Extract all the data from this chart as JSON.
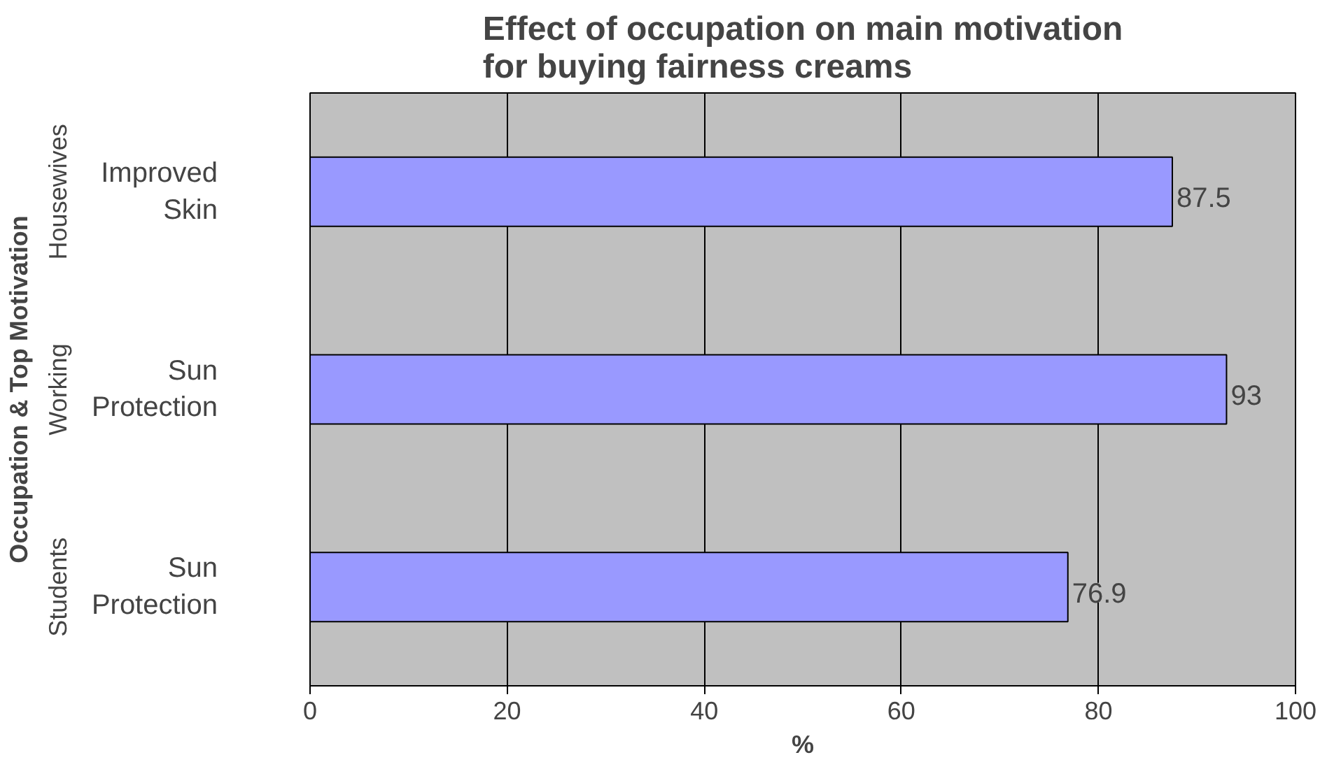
{
  "chart_data": {
    "type": "bar",
    "orientation": "horizontal",
    "title": "Effect of occupation on main motivation for buying fairness creams",
    "categories": [
      "Improved Skin",
      "Sun Protection",
      "Sun Protection"
    ],
    "annotations": [
      "Housewives",
      "Working",
      "Students"
    ],
    "values": [
      87.5,
      93,
      76.9
    ],
    "color": "#9999ff",
    "data_labels": true,
    "xlim": [
      0,
      100
    ],
    "xticks": [
      0,
      20,
      40,
      60,
      80,
      100
    ],
    "grid": "x",
    "xlabel": "%",
    "ylabel": "Occupation & Top Motivation"
  }
}
